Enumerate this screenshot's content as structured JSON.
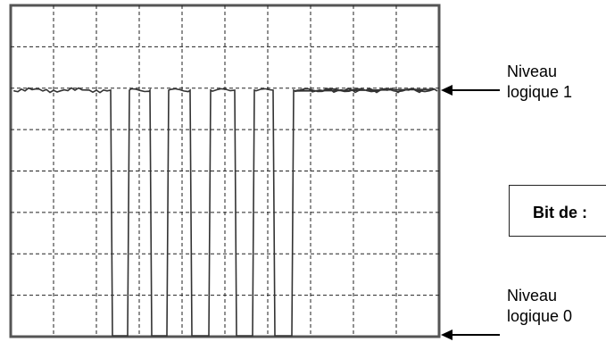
{
  "labels": {
    "high_line1": "Niveau",
    "high_line2": "logique 1",
    "low_line1": "Niveau",
    "low_line2": "logique 0",
    "box_text": "Bit de :"
  },
  "signal": {
    "divisions_x": 10,
    "divisions_y": 8,
    "levels": [
      "1",
      "0"
    ],
    "sequence": [
      1,
      0,
      1,
      0,
      1,
      0,
      1,
      0,
      1,
      0,
      1
    ]
  },
  "colors": {
    "trace": "#333333",
    "grid": "#222222",
    "frame": "#555555"
  }
}
